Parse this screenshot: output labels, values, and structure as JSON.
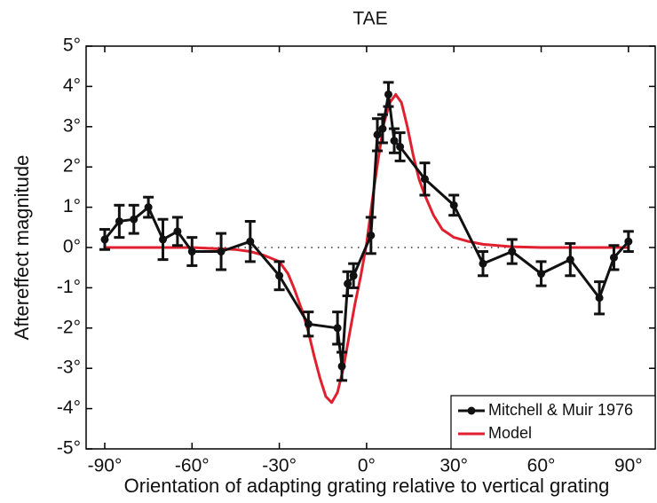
{
  "chart_data": {
    "type": "line",
    "title": "TAE",
    "xlabel": "Orientation of adapting grating relative to vertical grating",
    "ylabel": "Aftereffect magnitude",
    "xlim": [
      -96.4,
      99.2
    ],
    "ylim": [
      -5,
      5
    ],
    "xticks": [
      {
        "value": -90,
        "label": "-90°"
      },
      {
        "value": -60,
        "label": "-60°"
      },
      {
        "value": -30,
        "label": "-30°"
      },
      {
        "value": 0,
        "label": "0°"
      },
      {
        "value": 30,
        "label": "30°"
      },
      {
        "value": 60,
        "label": "60°"
      },
      {
        "value": 90,
        "label": "90°"
      }
    ],
    "yticks": [
      {
        "value": -5,
        "label": "-5°"
      },
      {
        "value": -4,
        "label": "-4°"
      },
      {
        "value": -3,
        "label": "-3°"
      },
      {
        "value": -2,
        "label": "-2°"
      },
      {
        "value": -1,
        "label": "-1°"
      },
      {
        "value": 0,
        "label": "0°"
      },
      {
        "value": 1,
        "label": "1°"
      },
      {
        "value": 2,
        "label": "2°"
      },
      {
        "value": 3,
        "label": "3°"
      },
      {
        "value": 4,
        "label": "4°"
      },
      {
        "value": 5,
        "label": "5°"
      }
    ],
    "legend": "lower right",
    "series": [
      {
        "name": "Mitchell & Muir 1976",
        "color": "#111111",
        "x": [
          -90,
          -85,
          -80,
          -75,
          -70,
          -65,
          -60,
          -50,
          -40,
          -30,
          -20,
          -10,
          -8.5,
          -6.5,
          -4.5,
          1.5,
          3.7,
          5.5,
          7.5,
          9.5,
          11.5,
          20,
          30,
          40,
          50,
          60,
          70,
          80,
          85,
          90
        ],
        "values": [
          0.2,
          0.65,
          0.7,
          1.0,
          0.2,
          0.4,
          -0.1,
          -0.1,
          0.15,
          -0.7,
          -1.9,
          -2.0,
          -2.95,
          -0.9,
          -0.7,
          0.3,
          2.8,
          2.95,
          3.8,
          2.65,
          2.5,
          1.7,
          1.05,
          -0.4,
          -0.1,
          -0.65,
          -0.3,
          -1.25,
          -0.25,
          0.15
        ],
        "errors": [
          0.25,
          0.4,
          0.35,
          0.25,
          0.5,
          0.35,
          0.35,
          0.45,
          0.5,
          0.35,
          0.3,
          0.4,
          0.35,
          0.3,
          0.3,
          0.45,
          0.4,
          0.35,
          0.3,
          0.3,
          0.35,
          0.4,
          0.25,
          0.3,
          0.3,
          0.3,
          0.4,
          0.4,
          0.3,
          0.25
        ]
      },
      {
        "name": "Model",
        "color": "#e0202e",
        "x": [
          -90,
          -60,
          -45,
          -40,
          -35,
          -30,
          -27,
          -25,
          -22,
          -20,
          -18,
          -16,
          -14,
          -12,
          -10,
          -8,
          -6,
          -4,
          -2,
          0,
          2,
          4,
          6,
          8,
          10,
          12,
          14,
          16,
          18,
          20,
          23,
          26,
          30,
          35,
          40,
          50,
          60,
          90
        ],
        "values": [
          0,
          0,
          -0.05,
          -0.1,
          -0.2,
          -0.35,
          -0.65,
          -1.0,
          -1.6,
          -2.1,
          -2.7,
          -3.25,
          -3.7,
          -3.85,
          -3.6,
          -3.0,
          -2.2,
          -1.4,
          -0.7,
          0.1,
          1.2,
          2.2,
          3.1,
          3.6,
          3.8,
          3.6,
          3.0,
          2.3,
          1.7,
          1.3,
          0.8,
          0.45,
          0.25,
          0.15,
          0.08,
          0.02,
          0,
          0
        ]
      }
    ]
  }
}
